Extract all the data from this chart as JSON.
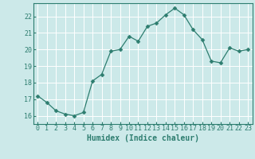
{
  "x": [
    0,
    1,
    2,
    3,
    4,
    5,
    6,
    7,
    8,
    9,
    10,
    11,
    12,
    13,
    14,
    15,
    16,
    17,
    18,
    19,
    20,
    21,
    22,
    23
  ],
  "y": [
    17.2,
    16.8,
    16.3,
    16.1,
    16.0,
    16.2,
    18.1,
    18.5,
    19.9,
    20.0,
    20.8,
    20.5,
    21.4,
    21.6,
    22.1,
    22.5,
    22.1,
    21.2,
    20.6,
    19.3,
    19.2,
    20.1,
    19.9,
    20.0
  ],
  "line_color": "#2d7d6f",
  "marker": "D",
  "marker_size": 2.5,
  "bg_color": "#cce9e9",
  "grid_color": "#ffffff",
  "xlabel": "Humidex (Indice chaleur)",
  "ylim": [
    15.5,
    22.8
  ],
  "xlim": [
    -0.5,
    23.5
  ],
  "yticks": [
    16,
    17,
    18,
    19,
    20,
    21,
    22
  ],
  "xticks": [
    0,
    1,
    2,
    3,
    4,
    5,
    6,
    7,
    8,
    9,
    10,
    11,
    12,
    13,
    14,
    15,
    16,
    17,
    18,
    19,
    20,
    21,
    22,
    23
  ],
  "tick_color": "#2d7d6f",
  "label_color": "#2d7d6f",
  "tick_fontsize": 6,
  "xlabel_fontsize": 7
}
